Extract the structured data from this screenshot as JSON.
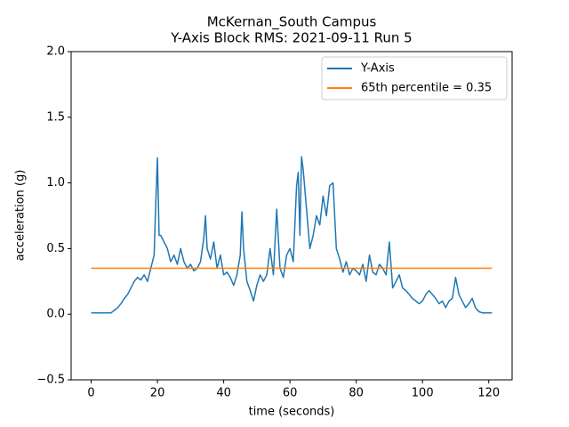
{
  "chart_data": {
    "type": "line",
    "title": [
      "McKernan_South Campus",
      "Y-Axis Block RMS: 2021-09-11 Run 5"
    ],
    "xlabel": "time (seconds)",
    "ylabel": "acceleration (g)",
    "xlim": [
      -6.05,
      127.05
    ],
    "ylim": [
      -0.5,
      2.0
    ],
    "xticks": [
      0,
      20,
      40,
      60,
      80,
      100,
      120
    ],
    "yticks": [
      {
        "value": -0.5,
        "label": "−0.5"
      },
      {
        "value": 0,
        "label": "0.0"
      },
      0.5,
      {
        "value": 1,
        "label": "1.0"
      },
      1.5,
      {
        "value": 2,
        "label": "2.0"
      }
    ],
    "legend": "upper right",
    "series": [
      {
        "name": "Y-Axis",
        "color": "#1f77b4",
        "x": [
          0,
          6,
          7,
          8,
          9,
          10,
          11,
          12,
          13,
          14,
          15,
          16,
          17,
          18,
          19,
          19.5,
          20,
          20.5,
          21,
          22,
          23,
          24,
          25,
          26,
          27,
          28,
          29,
          30,
          31,
          32,
          33,
          34,
          34.5,
          35,
          36,
          37,
          38,
          39,
          40,
          41,
          42,
          43,
          44,
          45,
          45.5,
          46,
          47,
          48,
          49,
          50,
          51,
          52,
          53,
          54,
          55,
          56,
          57,
          58,
          59,
          60,
          61,
          62,
          62.5,
          63,
          63.5,
          64,
          65,
          66,
          67,
          68,
          69,
          70,
          71,
          72,
          73,
          74,
          75,
          76,
          77,
          78,
          79,
          80,
          81,
          82,
          83,
          84,
          85,
          86,
          87,
          88,
          89,
          90,
          91,
          92,
          93,
          94,
          95,
          96,
          97,
          98,
          99,
          100,
          101,
          102,
          103,
          104,
          105,
          106,
          107,
          108,
          109,
          110,
          111,
          112,
          113,
          114,
          115,
          116,
          117,
          118,
          121
        ],
        "values": [
          0.01,
          0.01,
          0.03,
          0.05,
          0.08,
          0.12,
          0.15,
          0.2,
          0.25,
          0.28,
          0.26,
          0.3,
          0.25,
          0.35,
          0.45,
          0.85,
          1.19,
          0.6,
          0.6,
          0.55,
          0.5,
          0.4,
          0.45,
          0.38,
          0.5,
          0.4,
          0.35,
          0.38,
          0.33,
          0.35,
          0.4,
          0.58,
          0.75,
          0.5,
          0.42,
          0.55,
          0.35,
          0.45,
          0.3,
          0.32,
          0.28,
          0.22,
          0.3,
          0.45,
          0.78,
          0.5,
          0.25,
          0.18,
          0.1,
          0.22,
          0.3,
          0.25,
          0.3,
          0.5,
          0.3,
          0.8,
          0.35,
          0.28,
          0.45,
          0.5,
          0.4,
          0.98,
          1.08,
          0.6,
          1.2,
          1.1,
          0.8,
          0.5,
          0.6,
          0.75,
          0.68,
          0.9,
          0.75,
          0.98,
          1.0,
          0.5,
          0.42,
          0.32,
          0.4,
          0.3,
          0.35,
          0.33,
          0.3,
          0.38,
          0.25,
          0.45,
          0.32,
          0.3,
          0.38,
          0.35,
          0.3,
          0.55,
          0.2,
          0.25,
          0.3,
          0.2,
          0.18,
          0.15,
          0.12,
          0.1,
          0.08,
          0.1,
          0.15,
          0.18,
          0.15,
          0.12,
          0.08,
          0.1,
          0.05,
          0.1,
          0.12,
          0.28,
          0.15,
          0.1,
          0.05,
          0.08,
          0.12,
          0.05,
          0.02,
          0.01,
          0.01
        ]
      },
      {
        "name": "65th percentile = 0.35",
        "color": "#ff7f0e",
        "x": [
          0,
          121
        ],
        "values": [
          0.35,
          0.35
        ]
      }
    ]
  }
}
